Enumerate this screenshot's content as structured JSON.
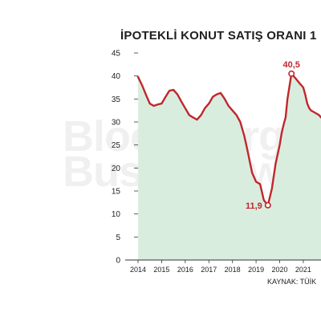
{
  "chart_data": {
    "type": "area",
    "title": "İPOTEKLİ KONUT SATIŞ ORANI 1",
    "source": "KAYNAK: TÜİK",
    "watermark": [
      "Bloomberg",
      "Businesswe"
    ],
    "xlabel": "",
    "ylabel": "",
    "ylim": [
      0,
      45
    ],
    "yticks": [
      0,
      5,
      10,
      15,
      20,
      25,
      30,
      35,
      40,
      45
    ],
    "xlim": [
      2014.0,
      2021.75
    ],
    "xticks": [
      "2014",
      "2015",
      "2016",
      "2017",
      "2018",
      "2019",
      "2020",
      "2021"
    ],
    "grid": false,
    "series": [
      {
        "color": "#c0272d",
        "fill": "#d9eddf",
        "x": [
          2014.0,
          2014.17,
          2014.33,
          2014.5,
          2014.67,
          2014.83,
          2015.0,
          2015.17,
          2015.33,
          2015.5,
          2015.67,
          2015.83,
          2016.0,
          2016.17,
          2016.33,
          2016.5,
          2016.67,
          2016.83,
          2017.0,
          2017.17,
          2017.33,
          2017.5,
          2017.67,
          2017.83,
          2018.0,
          2018.17,
          2018.33,
          2018.5,
          2018.67,
          2018.83,
          2019.0,
          2019.17,
          2019.33,
          2019.5,
          2019.67,
          2019.83,
          2020.0,
          2020.08,
          2020.17,
          2020.25,
          2020.33,
          2020.5,
          2020.67,
          2020.83,
          2021.0,
          2021.08,
          2021.17,
          2021.25,
          2021.33,
          2021.5,
          2021.67,
          2021.75
        ],
        "y": [
          39.8,
          38.0,
          36.0,
          34.0,
          33.5,
          33.8,
          34.0,
          35.5,
          36.8,
          37.0,
          36.0,
          34.5,
          33.0,
          31.5,
          31.0,
          30.5,
          31.5,
          33.0,
          34.0,
          35.5,
          36.0,
          36.3,
          35.0,
          33.5,
          32.5,
          31.5,
          30.0,
          27.0,
          23.0,
          19.0,
          17.0,
          16.5,
          13.0,
          11.9,
          15.5,
          21.0,
          25.0,
          27.5,
          29.5,
          31.0,
          35.0,
          40.5,
          39.5,
          38.5,
          37.5,
          36.0,
          34.0,
          33.0,
          32.5,
          32.0,
          31.5,
          31.0
        ]
      }
    ],
    "annotations": [
      {
        "label": "11,9",
        "x": 2019.5,
        "y": 11.9,
        "position": "left"
      },
      {
        "label": "40,5",
        "x": 2020.5,
        "y": 40.5,
        "position": "top"
      }
    ]
  }
}
